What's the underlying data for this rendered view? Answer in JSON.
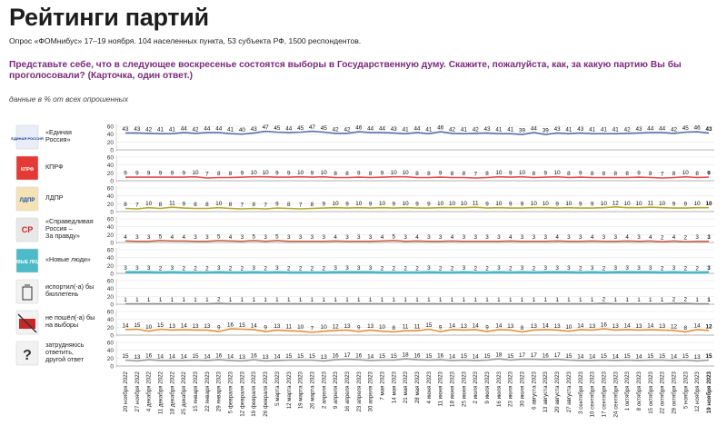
{
  "header": {
    "title": "Рейтинги партий",
    "subtitle": "Опрос «ФОМнибус» 17–19 ноября. 104 населенных пункта, 53 субъекта РФ, 1500 респондентов.",
    "question": "Представьте себе, что в следующее воскресенье состоятся выборы в Государственную думу. Скажите, пожалуйста, как, за какую партию Вы бы проголосовали? (Карточка, один ответ.)",
    "note": "данные в % от всех опрошенных"
  },
  "chart_data": {
    "type": "line",
    "ylim": [
      0,
      60
    ],
    "yticks": [
      0,
      20,
      40,
      60
    ],
    "x": [
      "20 ноября 2022",
      "27 ноября 2022",
      "4 декабря 2022",
      "11 декабря 2022",
      "18 декабря 2022",
      "25 декабря 2022",
      "15 января 2023",
      "22 января 2023",
      "29 января 2023",
      "5 февраля 2023",
      "12 февраля 2023",
      "19 февраля 2023",
      "26 февраля 2023",
      "5 марта 2023",
      "12 марта 2023",
      "19 марта 2023",
      "26 марта 2023",
      "2 апреля 2023",
      "9 апреля 2023",
      "16 апреля 2023",
      "23 апреля 2023",
      "30 апреля 2023",
      "7 мая 2023",
      "14 мая 2023",
      "21 мая 2023",
      "28 мая 2023",
      "4 июня 2023",
      "11 июня 2023",
      "18 июня 2023",
      "25 июня 2023",
      "2 июля 2023",
      "9 июля 2023",
      "16 июля 2023",
      "23 июля 2023",
      "30 июля 2023",
      "6 августа 2023",
      "13 августа 2023",
      "20 августа 2023",
      "27 августа 2023",
      "3 сентября 2023",
      "10 сентября 2023",
      "17 сентября 2023",
      "24 сентября 2023",
      "1 октября 2023",
      "8 октября 2023",
      "15 октября 2023",
      "22 октября 2023",
      "29 октября 2023",
      "5 ноября 2023",
      "12 ноября 2023",
      "19 ноября 2023"
    ],
    "series": [
      {
        "name": "«Единая Россия»",
        "logo": "ЕДИНАЯ РОССИЯ",
        "color": "#5b6fa8",
        "values": [
          43,
          43,
          42,
          41,
          41,
          44,
          42,
          44,
          44,
          41,
          40,
          43,
          47,
          45,
          44,
          45,
          47,
          45,
          42,
          42,
          46,
          44,
          44,
          43,
          41,
          44,
          41,
          46,
          42,
          41,
          42,
          43,
          41,
          41,
          39,
          44,
          39,
          43,
          41,
          43,
          41,
          41,
          41,
          42,
          43,
          44,
          44,
          42,
          45,
          46,
          43
        ]
      },
      {
        "name": "КПРФ",
        "logo": "КПРФ",
        "color": "#e34a4a",
        "values": [
          9,
          9,
          9,
          9,
          9,
          9,
          10,
          7,
          8,
          8,
          9,
          10,
          10,
          9,
          9,
          10,
          9,
          10,
          8,
          8,
          9,
          8,
          9,
          10,
          10,
          8,
          8,
          9,
          8,
          8,
          7,
          8,
          10,
          9,
          10,
          8,
          9,
          10,
          8,
          9,
          8,
          8,
          8,
          8,
          9,
          8,
          7,
          8,
          10,
          8,
          9
        ]
      },
      {
        "name": "ЛДПР",
        "logo": "ЛДПР",
        "color": "#b5a92e",
        "values": [
          8,
          7,
          10,
          8,
          11,
          9,
          8,
          8,
          10,
          8,
          7,
          8,
          7,
          9,
          8,
          7,
          8,
          9,
          10,
          9,
          10,
          9,
          10,
          9,
          10,
          9,
          9,
          10,
          10,
          10,
          11,
          9,
          10,
          9,
          9,
          10,
          10,
          9,
          10,
          9,
          9,
          10,
          12,
          10,
          10,
          11,
          10,
          9,
          9,
          10,
          10
        ]
      },
      {
        "name": "«Справедливая Россия – За правду»",
        "logo": "СР",
        "color": "#cf6b4a",
        "values": [
          4,
          3,
          3,
          5,
          4,
          4,
          3,
          3,
          5,
          4,
          3,
          5,
          3,
          5,
          3,
          3,
          3,
          3,
          4,
          3,
          3,
          3,
          4,
          5,
          3,
          4,
          3,
          3,
          4,
          3,
          3,
          3,
          3,
          4,
          3,
          3,
          3,
          4,
          3,
          3,
          4,
          3,
          3,
          4,
          3,
          4,
          2,
          4,
          2,
          3,
          3
        ]
      },
      {
        "name": "«Новые люди»",
        "logo": "НОВЫЕ ЛЮДИ",
        "color": "#49b6c6",
        "values": [
          3,
          3,
          3,
          2,
          3,
          2,
          2,
          2,
          3,
          2,
          2,
          3,
          2,
          3,
          2,
          2,
          2,
          2,
          3,
          3,
          3,
          3,
          2,
          2,
          2,
          2,
          3,
          2,
          2,
          3,
          2,
          2,
          3,
          2,
          3,
          2,
          3,
          3,
          3,
          2,
          3,
          2,
          3,
          3,
          3,
          3,
          2,
          3,
          2,
          2,
          3
        ]
      },
      {
        "name": "испортил(-а) бы бюллетень",
        "logo": "урна",
        "color": "#8c8c8c",
        "values": [
          1,
          1,
          1,
          1,
          1,
          1,
          1,
          1,
          2,
          1,
          1,
          1,
          1,
          1,
          1,
          1,
          1,
          1,
          1,
          1,
          1,
          1,
          1,
          1,
          1,
          1,
          1,
          1,
          1,
          1,
          1,
          1,
          1,
          1,
          1,
          1,
          1,
          1,
          1,
          1,
          1,
          2,
          1,
          1,
          1,
          1,
          1,
          2,
          2,
          1,
          1
        ]
      },
      {
        "name": "не пошёл(-а) бы на выборы",
        "logo": "выборы",
        "color": "#e3903a",
        "values": [
          14,
          15,
          10,
          15,
          13,
          14,
          13,
          13,
          9,
          16,
          15,
          14,
          9,
          13,
          11,
          10,
          7,
          10,
          12,
          13,
          9,
          13,
          10,
          8,
          11,
          11,
          15,
          9,
          14,
          13,
          14,
          9,
          14,
          13,
          8,
          13,
          14,
          13,
          10,
          14,
          13,
          16,
          13,
          14,
          13,
          14,
          13,
          12,
          8,
          14,
          12
        ]
      },
      {
        "name": "затрудняюсь ответить, другой ответ",
        "logo": "?",
        "color": "#9a9a9a",
        "values": [
          15,
          13,
          16,
          14,
          14,
          14,
          15,
          14,
          16,
          14,
          13,
          16,
          13,
          14,
          15,
          15,
          15,
          13,
          16,
          17,
          16,
          14,
          15,
          15,
          18,
          16,
          15,
          16,
          14,
          15,
          14,
          15,
          18,
          15,
          17,
          17,
          16,
          17,
          15,
          14,
          14,
          15,
          14,
          15,
          14,
          15,
          15,
          14,
          15,
          13,
          15
        ]
      }
    ]
  }
}
